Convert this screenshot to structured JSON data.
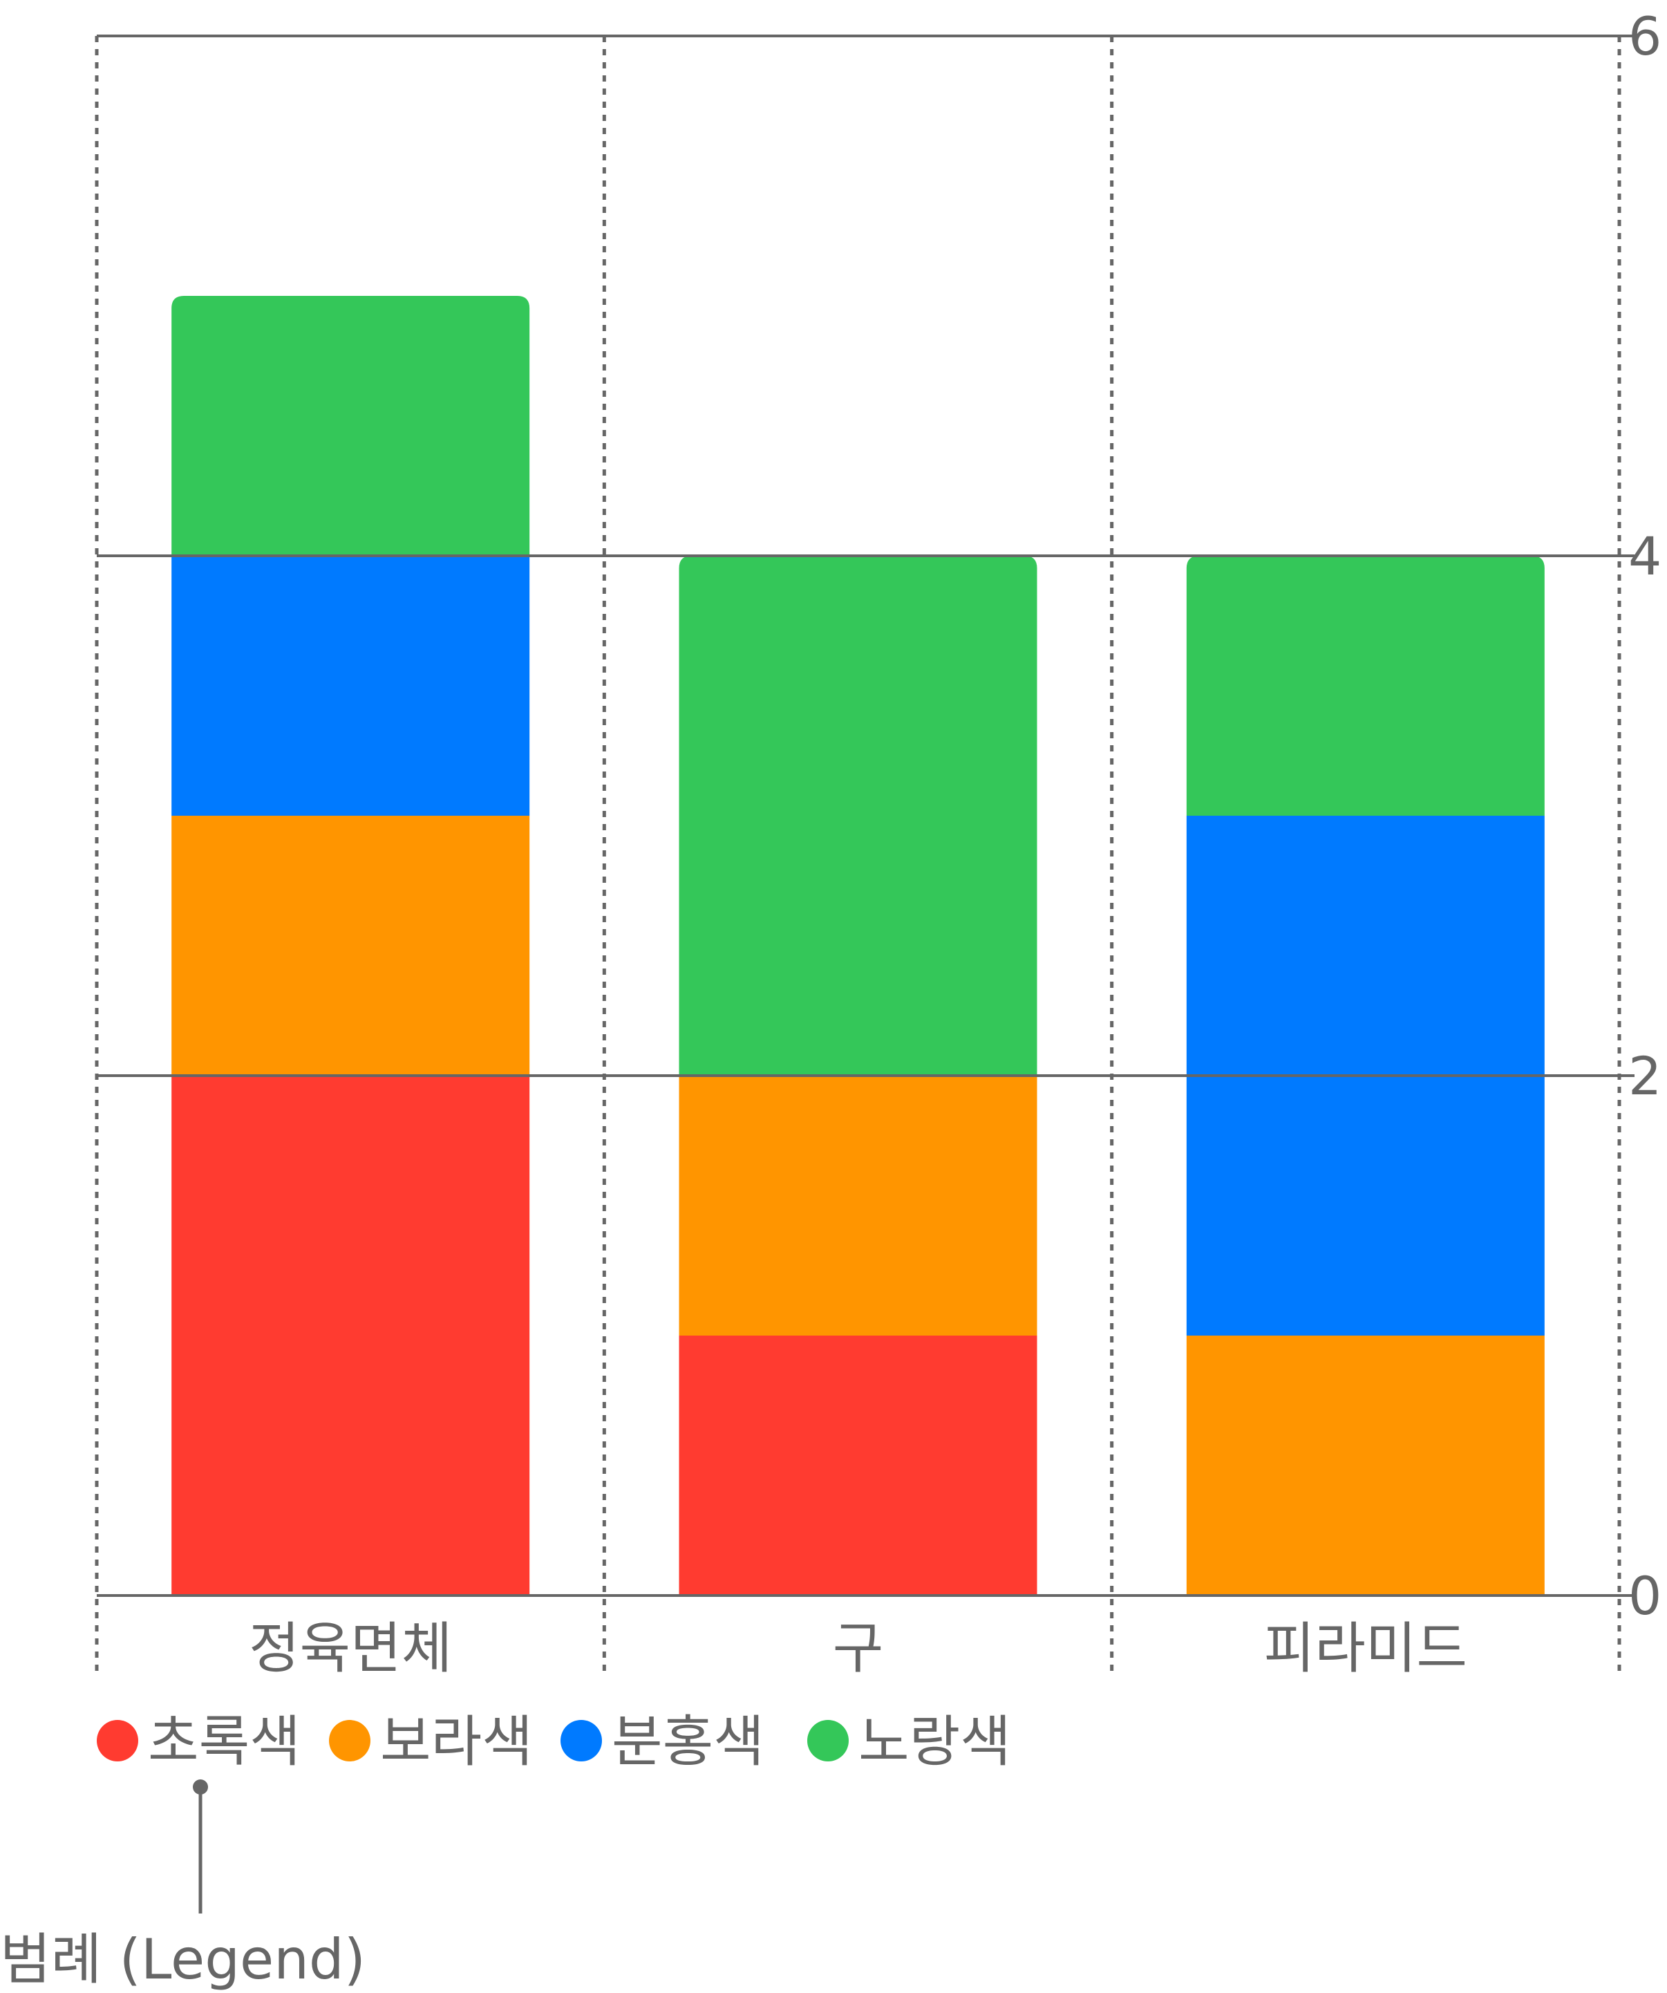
{
  "chart_data": {
    "type": "bar",
    "stacked": true,
    "categories": [
      "정육면체",
      "구",
      "피라미드"
    ],
    "series": [
      {
        "name": "초록색",
        "color": "#ff3b30",
        "values": [
          2,
          1,
          0
        ]
      },
      {
        "name": "보라색",
        "color": "#ff9500",
        "values": [
          1,
          1,
          1
        ]
      },
      {
        "name": "분홍색",
        "color": "#007aff",
        "values": [
          1,
          0,
          2
        ]
      },
      {
        "name": "노랑색",
        "color": "#34c759",
        "values": [
          1,
          2,
          1
        ]
      }
    ],
    "ylim": [
      0,
      6
    ],
    "yticks": [
      0,
      2,
      4,
      6
    ],
    "ytick_labels": [
      "0",
      "2",
      "4",
      "6"
    ],
    "y_axis_side": "right",
    "grid": true,
    "legend_placement": "bottom-left",
    "annotation": "범례 (Legend)"
  }
}
